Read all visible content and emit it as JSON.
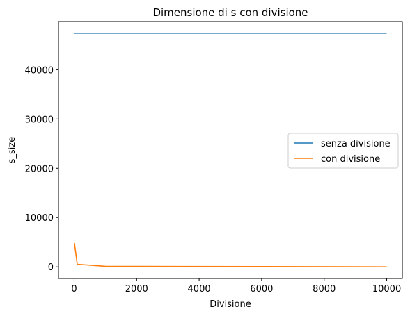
{
  "chart_data": {
    "type": "line",
    "title": "Dimensione di s con divisione",
    "xlabel": "Divisione",
    "ylabel": "s_size",
    "xlim": [
      -500,
      10500
    ],
    "ylim": [
      -2370,
      49780
    ],
    "xticks": [
      0,
      2000,
      4000,
      6000,
      8000,
      10000
    ],
    "yticks": [
      0,
      10000,
      20000,
      30000,
      40000
    ],
    "grid": false,
    "legend_position": "center-right",
    "series": [
      {
        "name": "senza divisione",
        "color": "#1f77b4",
        "x": [
          10,
          100,
          1000,
          10000
        ],
        "y": [
          47400,
          47400,
          47400,
          47400
        ]
      },
      {
        "name": "con divisione",
        "color": "#ff7f0e",
        "x": [
          10,
          100,
          1000,
          10000
        ],
        "y": [
          4840,
          520,
          100,
          5
        ]
      }
    ]
  }
}
